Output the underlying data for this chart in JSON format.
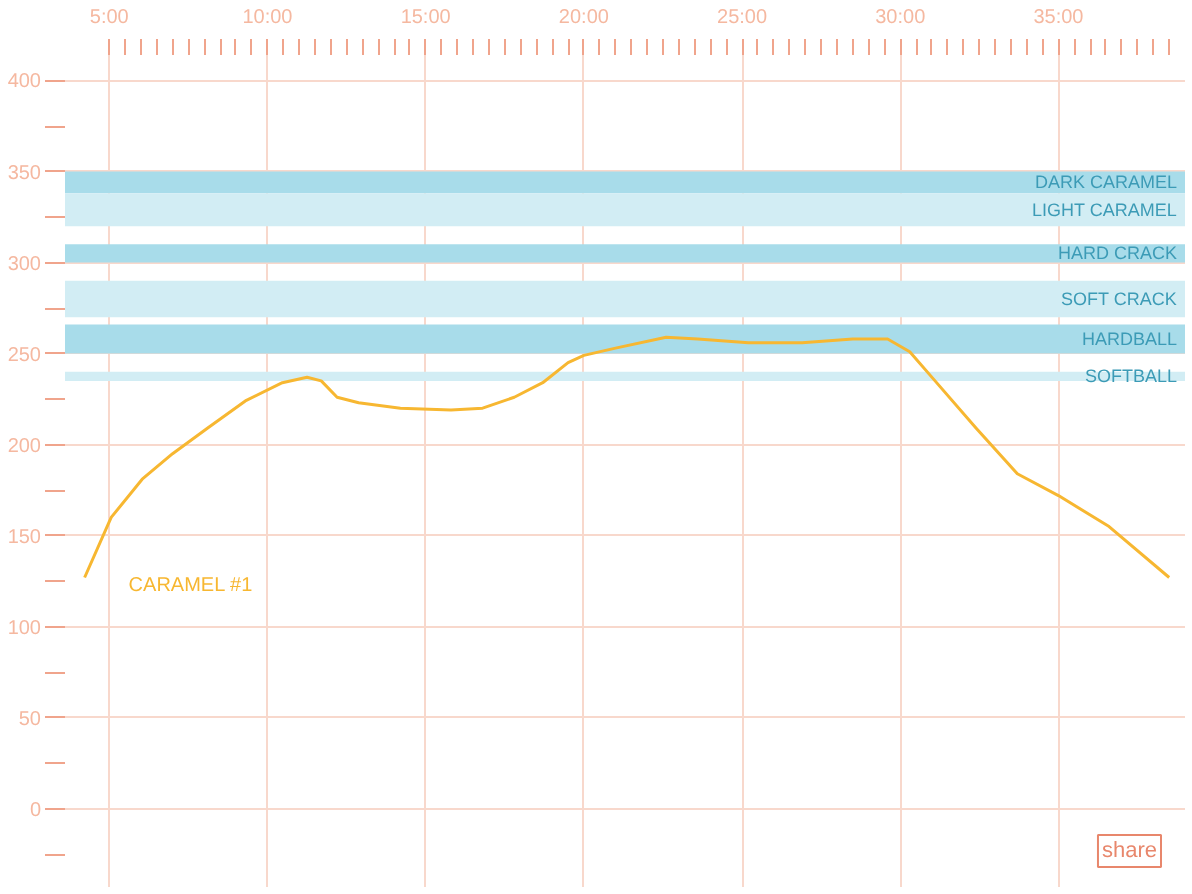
{
  "chart_data": {
    "type": "line",
    "x": [
      4.22,
      5.06,
      6.04,
      7.0,
      8.1,
      9.3,
      10.47,
      11.25,
      11.7,
      12.2,
      12.88,
      14.2,
      15.8,
      16.8,
      17.8,
      18.7,
      19.5,
      20.0,
      21.0,
      22.6,
      23.6,
      25.2,
      26.9,
      28.5,
      29.6,
      30.3,
      31.1,
      32.4,
      33.7,
      35.0,
      36.6,
      38.5
    ],
    "series": [
      {
        "name": "CARAMEL #1",
        "color": "#f7b731",
        "values": [
          127,
          160,
          181,
          195,
          209,
          224,
          234,
          237,
          235,
          226,
          223,
          220,
          219,
          220,
          226,
          234,
          245,
          249,
          253,
          259,
          258,
          256,
          256,
          258,
          258,
          251,
          235,
          209,
          184,
          172,
          155,
          127
        ]
      }
    ],
    "xlim": [
      3.6,
      39
    ],
    "ylim": [
      -43,
      414
    ],
    "xticks": [
      {
        "value": 5,
        "label": "5:00"
      },
      {
        "value": 10,
        "label": "10:00"
      },
      {
        "value": 15,
        "label": "15:00"
      },
      {
        "value": 20,
        "label": "20:00"
      },
      {
        "value": 25,
        "label": "25:00"
      },
      {
        "value": 30,
        "label": "30:00"
      },
      {
        "value": 35,
        "label": "35:00"
      },
      {
        "value": 5.5,
        "label": null
      },
      {
        "value": 6,
        "label": null
      },
      {
        "value": 6.5,
        "label": null
      },
      {
        "value": 7,
        "label": null
      },
      {
        "value": 7.5,
        "label": null
      },
      {
        "value": 8,
        "label": null
      },
      {
        "value": 8.5,
        "label": null
      },
      {
        "value": 9,
        "label": null
      },
      {
        "value": 9.5,
        "label": null
      },
      {
        "value": 10.5,
        "label": null
      },
      {
        "value": 11,
        "label": null
      },
      {
        "value": 11.5,
        "label": null
      },
      {
        "value": 12,
        "label": null
      },
      {
        "value": 12.5,
        "label": null
      },
      {
        "value": 13,
        "label": null
      },
      {
        "value": 13.5,
        "label": null
      },
      {
        "value": 14,
        "label": null
      },
      {
        "value": 14.5,
        "label": null
      },
      {
        "value": 15.5,
        "label": null
      },
      {
        "value": 16,
        "label": null
      },
      {
        "value": 16.5,
        "label": null
      },
      {
        "value": 17,
        "label": null
      },
      {
        "value": 17.5,
        "label": null
      },
      {
        "value": 18,
        "label": null
      },
      {
        "value": 18.5,
        "label": null
      },
      {
        "value": 19,
        "label": null
      },
      {
        "value": 19.5,
        "label": null
      },
      {
        "value": 20.5,
        "label": null
      },
      {
        "value": 21,
        "label": null
      },
      {
        "value": 21.5,
        "label": null
      },
      {
        "value": 22,
        "label": null
      },
      {
        "value": 22.5,
        "label": null
      },
      {
        "value": 23,
        "label": null
      },
      {
        "value": 23.5,
        "label": null
      },
      {
        "value": 24,
        "label": null
      },
      {
        "value": 24.5,
        "label": null
      },
      {
        "value": 25.5,
        "label": null
      },
      {
        "value": 26,
        "label": null
      },
      {
        "value": 26.5,
        "label": null
      },
      {
        "value": 27,
        "label": null
      },
      {
        "value": 27.5,
        "label": null
      },
      {
        "value": 28,
        "label": null
      },
      {
        "value": 28.5,
        "label": null
      },
      {
        "value": 29,
        "label": null
      },
      {
        "value": 29.5,
        "label": null
      },
      {
        "value": 30.5,
        "label": null
      },
      {
        "value": 31,
        "label": null
      },
      {
        "value": 31.5,
        "label": null
      },
      {
        "value": 32,
        "label": null
      },
      {
        "value": 32.5,
        "label": null
      },
      {
        "value": 33,
        "label": null
      },
      {
        "value": 33.5,
        "label": null
      },
      {
        "value": 34,
        "label": null
      },
      {
        "value": 34.5,
        "label": null
      },
      {
        "value": 35.5,
        "label": null
      },
      {
        "value": 36,
        "label": null
      },
      {
        "value": 36.5,
        "label": null
      },
      {
        "value": 37,
        "label": null
      },
      {
        "value": 37.5,
        "label": null
      },
      {
        "value": 38,
        "label": null
      },
      {
        "value": 38.5,
        "label": null
      }
    ],
    "yticks": [
      0,
      50,
      100,
      150,
      200,
      250,
      300,
      350,
      400,
      {
        "value": -25,
        "label": null
      },
      {
        "value": 25,
        "label": null
      },
      {
        "value": 75,
        "label": null
      },
      {
        "value": 125,
        "label": null
      },
      {
        "value": 175,
        "label": null
      },
      {
        "value": 225,
        "label": null
      },
      {
        "value": 275,
        "label": null
      },
      {
        "value": 325,
        "label": null
      },
      {
        "value": 375,
        "label": null
      }
    ],
    "bands": [
      {
        "axis": "y",
        "from": 338,
        "to": 350,
        "label": "DARK CARAMEL",
        "color": "#a8dcea"
      },
      {
        "axis": "y",
        "from": 320,
        "to": 338,
        "label": "LIGHT CARAMEL",
        "color": "#d2edf4"
      },
      {
        "axis": "y",
        "from": 300,
        "to": 310,
        "label": "HARD CRACK",
        "color": "#a8dcea"
      },
      {
        "axis": "y",
        "from": 270,
        "to": 290,
        "label": "SOFT CRACK",
        "color": "#d2edf4"
      },
      {
        "axis": "y",
        "from": 250,
        "to": 266,
        "label": "HARDBALL",
        "color": "#a8dcea"
      },
      {
        "axis": "y",
        "from": 235,
        "to": 240,
        "label": "SOFTBALL",
        "color": "#d2edf4"
      }
    ],
    "annotations": [
      "share"
    ],
    "grid": true,
    "marker": "none",
    "line_style": "solid"
  }
}
